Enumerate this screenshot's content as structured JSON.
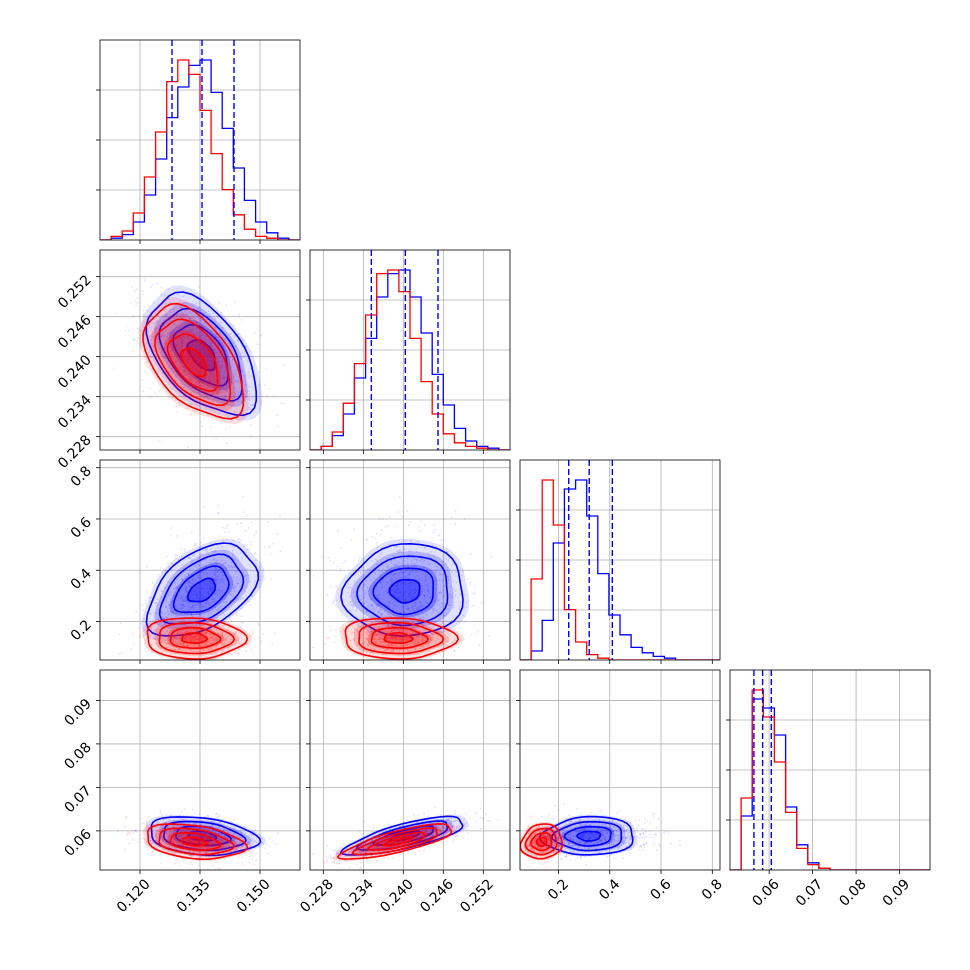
{
  "colors": {
    "red": "#ff0000",
    "blue": "#0000ff",
    "grid": "#b0b0b0",
    "frame": "#000000"
  },
  "chart_data": {
    "type": "corner",
    "grid": true,
    "legend": "none",
    "parameters": [
      {
        "id": "p1",
        "range": [
          0.11,
          0.16
        ],
        "ticks": [
          0.12,
          0.135,
          0.15
        ],
        "tick_labels": [
          "0.120",
          "0.135",
          "0.150"
        ]
      },
      {
        "id": "p2",
        "range": [
          0.226,
          0.256
        ],
        "ticks": [
          0.228,
          0.234,
          0.24,
          0.246,
          0.252
        ],
        "tick_labels": [
          "0.228",
          "0.234",
          "0.240",
          "0.246",
          "0.252"
        ]
      },
      {
        "id": "p3",
        "range": [
          0.05,
          0.83
        ],
        "ticks": [
          0.2,
          0.4,
          0.6,
          0.8
        ],
        "tick_labels": [
          "0.2",
          "0.4",
          "0.6",
          "0.8"
        ]
      },
      {
        "id": "p4",
        "range": [
          0.051,
          0.097
        ],
        "ticks": [
          0.06,
          0.07,
          0.08,
          0.09
        ],
        "tick_labels": [
          "0.06",
          "0.07",
          "0.08",
          "0.09"
        ]
      }
    ],
    "series": [
      {
        "color": "#0000ff",
        "quantiles": [
          [
            0.128,
            0.1355,
            0.1435
          ],
          [
            0.2352,
            0.2403,
            0.2452
          ],
          [
            0.24,
            0.32,
            0.41
          ],
          [
            0.0565,
            0.0585,
            0.0605
          ]
        ],
        "mean": [
          0.1355,
          0.2403,
          0.32,
          0.0588
        ],
        "sigma": [
          0.0068,
          0.0045,
          0.09,
          0.0022
        ],
        "histograms": [
          [
            0.0,
            0.01,
            0.03,
            0.1,
            0.25,
            0.45,
            0.68,
            0.85,
            0.97,
            1.0,
            0.82,
            0.62,
            0.4,
            0.22,
            0.1,
            0.04,
            0.01,
            0.0
          ],
          [
            0.0,
            0.02,
            0.08,
            0.2,
            0.4,
            0.62,
            0.85,
            0.98,
            1.0,
            0.85,
            0.65,
            0.42,
            0.25,
            0.12,
            0.05,
            0.02,
            0.01,
            0.0
          ],
          [
            0.0,
            0.05,
            0.22,
            0.65,
            0.95,
            1.0,
            0.8,
            0.48,
            0.25,
            0.14,
            0.07,
            0.04,
            0.02,
            0.01,
            0.0,
            0.0,
            0.0,
            0.0
          ],
          [
            0.0,
            0.3,
            0.95,
            0.9,
            0.75,
            0.35,
            0.14,
            0.04,
            0.01,
            0.0,
            0.0,
            0.0,
            0.0,
            0.0,
            0.0,
            0.0,
            0.0,
            0.0
          ]
        ],
        "correlations": {
          "1-0": -0.5,
          "2-0": 0.45,
          "2-1": 0.05,
          "3-0": -0.25,
          "3-1": 0.75,
          "3-2": 0.05
        }
      },
      {
        "color": "#ff0000",
        "quantiles": null,
        "mean": [
          0.1335,
          0.2392,
          0.135,
          0.0575
        ],
        "sigma": [
          0.0062,
          0.0042,
          0.04,
          0.002
        ],
        "histograms": [
          [
            0.0,
            0.02,
            0.05,
            0.15,
            0.35,
            0.6,
            0.88,
            1.0,
            0.92,
            0.72,
            0.48,
            0.28,
            0.14,
            0.06,
            0.02,
            0.01,
            0.0,
            0.0
          ],
          [
            0.0,
            0.02,
            0.1,
            0.26,
            0.48,
            0.75,
            0.98,
            1.0,
            0.88,
            0.62,
            0.38,
            0.2,
            0.09,
            0.04,
            0.02,
            0.01,
            0.0,
            0.0
          ],
          [
            0.0,
            0.45,
            1.0,
            0.75,
            0.28,
            0.1,
            0.03,
            0.01,
            0.0,
            0.0,
            0.0,
            0.0,
            0.0,
            0.0,
            0.0,
            0.0,
            0.0,
            0.0
          ],
          [
            0.0,
            0.4,
            1.0,
            0.85,
            0.6,
            0.32,
            0.12,
            0.03,
            0.01,
            0.0,
            0.0,
            0.0,
            0.0,
            0.0,
            0.0,
            0.0,
            0.0,
            0.0
          ]
        ],
        "correlations": {
          "1-0": -0.5,
          "2-0": -0.05,
          "2-1": -0.05,
          "3-0": -0.3,
          "3-1": 0.78,
          "3-2": 0.1
        }
      }
    ]
  }
}
